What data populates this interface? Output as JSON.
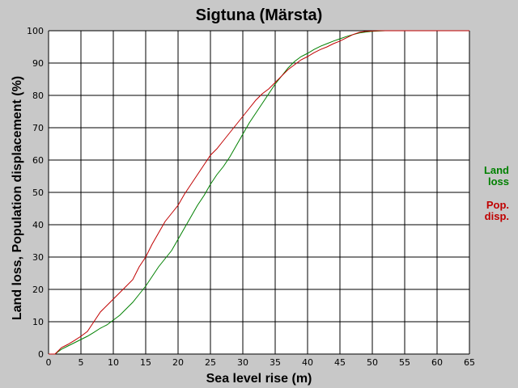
{
  "chart_data": {
    "type": "line",
    "title": "Sigtuna (Märsta)",
    "xlabel": "Sea level rise (m)",
    "ylabel": "Land loss, Population displacement (%)",
    "xlim": [
      0,
      65
    ],
    "ylim": [
      0,
      100
    ],
    "xticks": [
      0,
      5,
      10,
      15,
      20,
      25,
      30,
      35,
      40,
      45,
      50,
      55,
      60,
      65
    ],
    "yticks": [
      0,
      10,
      20,
      30,
      40,
      50,
      60,
      70,
      80,
      90,
      100
    ],
    "grid": true,
    "legend_position": "right",
    "series": [
      {
        "name_lines": [
          "Land",
          "loss"
        ],
        "color": "#008000",
        "x": [
          0,
          1,
          2,
          3,
          4,
          5,
          6,
          7,
          8,
          9,
          10,
          11,
          12,
          13,
          14,
          15,
          16,
          17,
          18,
          19,
          20,
          21,
          22,
          23,
          24,
          25,
          26,
          27,
          28,
          29,
          30,
          31,
          32,
          33,
          34,
          35,
          36,
          37,
          38,
          39,
          40,
          41,
          42,
          43,
          44,
          45,
          46,
          47,
          48,
          49,
          50,
          51,
          52,
          53,
          54,
          55,
          56,
          57,
          58,
          59,
          60,
          61,
          62,
          63,
          64,
          65
        ],
        "y": [
          0,
          0,
          1.5,
          2.5,
          3.5,
          4.5,
          5.5,
          6.7,
          8,
          9,
          10.5,
          12,
          14,
          16,
          18.5,
          21,
          24,
          27,
          29.5,
          32,
          35.5,
          39,
          42.5,
          46,
          49,
          52.5,
          55.5,
          58,
          61,
          64.5,
          68,
          71.5,
          74.5,
          77.5,
          80.5,
          83.5,
          86,
          88.5,
          90.5,
          92,
          93,
          94.2,
          95.2,
          96,
          96.8,
          97.5,
          98.2,
          98.8,
          99.3,
          99.6,
          99.8,
          99.9,
          100,
          100,
          100,
          100,
          100,
          100,
          100,
          100,
          100,
          100,
          100,
          100,
          100,
          100
        ]
      },
      {
        "name_lines": [
          "Pop.",
          "disp."
        ],
        "color": "#c00000",
        "x": [
          0,
          1,
          2,
          3,
          4,
          5,
          6,
          7,
          8,
          9,
          10,
          11,
          12,
          13,
          14,
          15,
          16,
          17,
          18,
          19,
          20,
          21,
          22,
          23,
          24,
          25,
          26,
          27,
          28,
          29,
          30,
          31,
          32,
          33,
          34,
          35,
          36,
          37,
          38,
          39,
          40,
          41,
          42,
          43,
          44,
          45,
          46,
          47,
          48,
          49,
          50,
          51,
          52,
          53,
          54,
          55,
          56,
          57,
          58,
          59,
          60,
          61,
          62,
          63,
          64,
          65
        ],
        "y": [
          0,
          0,
          2,
          3,
          4.2,
          5.5,
          7,
          10,
          13,
          15,
          17,
          19,
          21,
          23,
          27,
          30,
          34,
          37.5,
          41,
          43.5,
          46,
          49.5,
          52.5,
          55.5,
          58.5,
          61.5,
          63.5,
          66,
          68.5,
          71,
          73.5,
          76,
          78.5,
          80.5,
          82,
          84,
          86,
          88,
          89.5,
          91,
          92,
          93.2,
          94.2,
          95,
          96,
          96.8,
          97.8,
          98.8,
          99.5,
          99.8,
          99.9,
          100,
          100,
          100,
          100,
          100,
          100,
          100,
          100,
          100,
          100,
          100,
          100,
          100,
          100,
          100
        ]
      }
    ]
  }
}
